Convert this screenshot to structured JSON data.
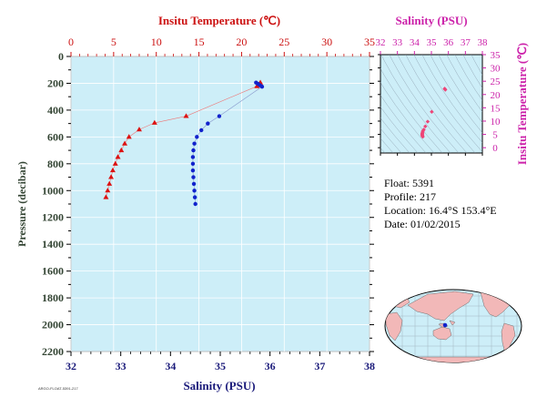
{
  "chart_data": [
    {
      "type": "scatter",
      "xlabel_top": "Insitu Temperature (℃)",
      "xlabel_bottom": "Salinity (PSU)",
      "ylabel": "Pressure (decibar)",
      "temperature_ticks": [
        "0",
        "5",
        "10",
        "15",
        "20",
        "25",
        "30",
        "35"
      ],
      "salinity_ticks": [
        "32",
        "33",
        "34",
        "35",
        "36",
        "37",
        "38"
      ],
      "pressure_ticks": [
        "0",
        "200",
        "400",
        "600",
        "800",
        "1000",
        "1200",
        "1400",
        "1600",
        "1800",
        "2000",
        "2200"
      ],
      "xlim_temperature": [
        0,
        35
      ],
      "xlim_salinity": [
        32,
        38
      ],
      "ylim_pressure": [
        0,
        2200
      ],
      "y_inverted": true,
      "grid": true,
      "colors": {
        "plot_bg": "#cdeef8",
        "temperature": "#dd1111",
        "salinity": "#1122cc",
        "grid": "#ffffff"
      },
      "series": [
        {
          "key": "temperature",
          "marker": "triangle",
          "points": [
            {
              "t": 22.2,
              "p": 195
            },
            {
              "t": 22.0,
              "p": 210
            },
            {
              "t": 21.8,
              "p": 222
            },
            {
              "t": 13.5,
              "p": 445
            },
            {
              "t": 9.8,
              "p": 495
            },
            {
              "t": 8.0,
              "p": 545
            },
            {
              "t": 6.8,
              "p": 600
            },
            {
              "t": 6.3,
              "p": 650
            },
            {
              "t": 5.9,
              "p": 700
            },
            {
              "t": 5.5,
              "p": 750
            },
            {
              "t": 5.2,
              "p": 800
            },
            {
              "t": 4.9,
              "p": 850
            },
            {
              "t": 4.7,
              "p": 900
            },
            {
              "t": 4.5,
              "p": 950
            },
            {
              "t": 4.3,
              "p": 1000
            },
            {
              "t": 4.1,
              "p": 1050
            }
          ]
        },
        {
          "key": "salinity",
          "marker": "circle",
          "points": [
            {
              "s": 35.72,
              "p": 195
            },
            {
              "s": 35.76,
              "p": 205
            },
            {
              "s": 35.8,
              "p": 215
            },
            {
              "s": 35.84,
              "p": 225
            },
            {
              "s": 34.98,
              "p": 445
            },
            {
              "s": 34.75,
              "p": 500
            },
            {
              "s": 34.62,
              "p": 550
            },
            {
              "s": 34.53,
              "p": 600
            },
            {
              "s": 34.48,
              "p": 650
            },
            {
              "s": 34.46,
              "p": 700
            },
            {
              "s": 34.45,
              "p": 750
            },
            {
              "s": 34.45,
              "p": 800
            },
            {
              "s": 34.45,
              "p": 850
            },
            {
              "s": 34.46,
              "p": 900
            },
            {
              "s": 34.47,
              "p": 950
            },
            {
              "s": 34.48,
              "p": 1000
            },
            {
              "s": 34.49,
              "p": 1050
            },
            {
              "s": 34.5,
              "p": 1100
            }
          ]
        }
      ]
    },
    {
      "type": "scatter",
      "xlabel": "Salinity (PSU)",
      "ylabel": "Insitu Temperature (℃)",
      "x_ticks": [
        "32",
        "33",
        "34",
        "35",
        "36",
        "37",
        "38"
      ],
      "y_ticks": [
        "0",
        "5",
        "10",
        "15",
        "20",
        "25",
        "30",
        "35"
      ],
      "xlim": [
        32,
        38
      ],
      "ylim": [
        -2,
        35
      ],
      "marker": "diamond",
      "colors": {
        "plot_bg": "#cdeef8",
        "points": "#ee4477",
        "contours": "#8899aa"
      },
      "points": [
        {
          "s": 35.78,
          "t": 22.2
        },
        {
          "s": 35.8,
          "t": 22.0
        },
        {
          "s": 35.82,
          "t": 21.8
        },
        {
          "s": 35.02,
          "t": 13.5
        },
        {
          "s": 34.78,
          "t": 9.8
        },
        {
          "s": 34.64,
          "t": 8.0
        },
        {
          "s": 34.55,
          "t": 6.8
        },
        {
          "s": 34.5,
          "t": 6.3
        },
        {
          "s": 34.48,
          "t": 5.9
        },
        {
          "s": 34.47,
          "t": 5.5
        },
        {
          "s": 34.46,
          "t": 5.2
        },
        {
          "s": 34.46,
          "t": 4.9
        },
        {
          "s": 34.46,
          "t": 4.7
        },
        {
          "s": 34.47,
          "t": 4.5
        },
        {
          "s": 34.48,
          "t": 4.3
        },
        {
          "s": 34.49,
          "t": 4.1
        }
      ]
    }
  ],
  "info": {
    "float": "Float:  5391",
    "profile": "Profile:  217",
    "location": "Location:  16.4°S  153.4°E",
    "date": "Date:  01/02/2015"
  },
  "footer_note": "ARGO-FLOAT-5391-217",
  "map": {
    "marker_color": "#1122cc",
    "ocean_color": "#cdeef8",
    "land_color": "#f2b8b8"
  }
}
